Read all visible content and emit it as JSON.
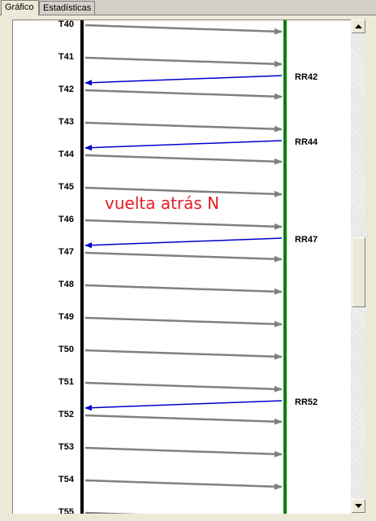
{
  "tabs": [
    {
      "label": "Gráfico",
      "active": true
    },
    {
      "label": "Estadísticas",
      "active": false
    }
  ],
  "diagram": {
    "left_labels": [
      "T40",
      "T41",
      "T42",
      "T43",
      "T44",
      "T45",
      "T46",
      "T47",
      "T48",
      "T49",
      "T50",
      "T51",
      "T52",
      "T53",
      "T54",
      "T55"
    ],
    "right_labels": [
      {
        "label": "RR42",
        "after": "T41"
      },
      {
        "label": "RR44",
        "after": "T43"
      },
      {
        "label": "RR47",
        "after": "T46"
      },
      {
        "label": "RR52",
        "after": "T51"
      }
    ],
    "annotation": "vuelta atrás N",
    "colors": {
      "left_timeline": "#000000",
      "right_timeline": "#008000",
      "forward_arrow": "#808080",
      "back_arrow": "#0000cc",
      "annotation": "#e51c23"
    }
  },
  "scrollbar": {
    "up_icon": "arrow-up-icon",
    "down_icon": "arrow-down-icon"
  }
}
